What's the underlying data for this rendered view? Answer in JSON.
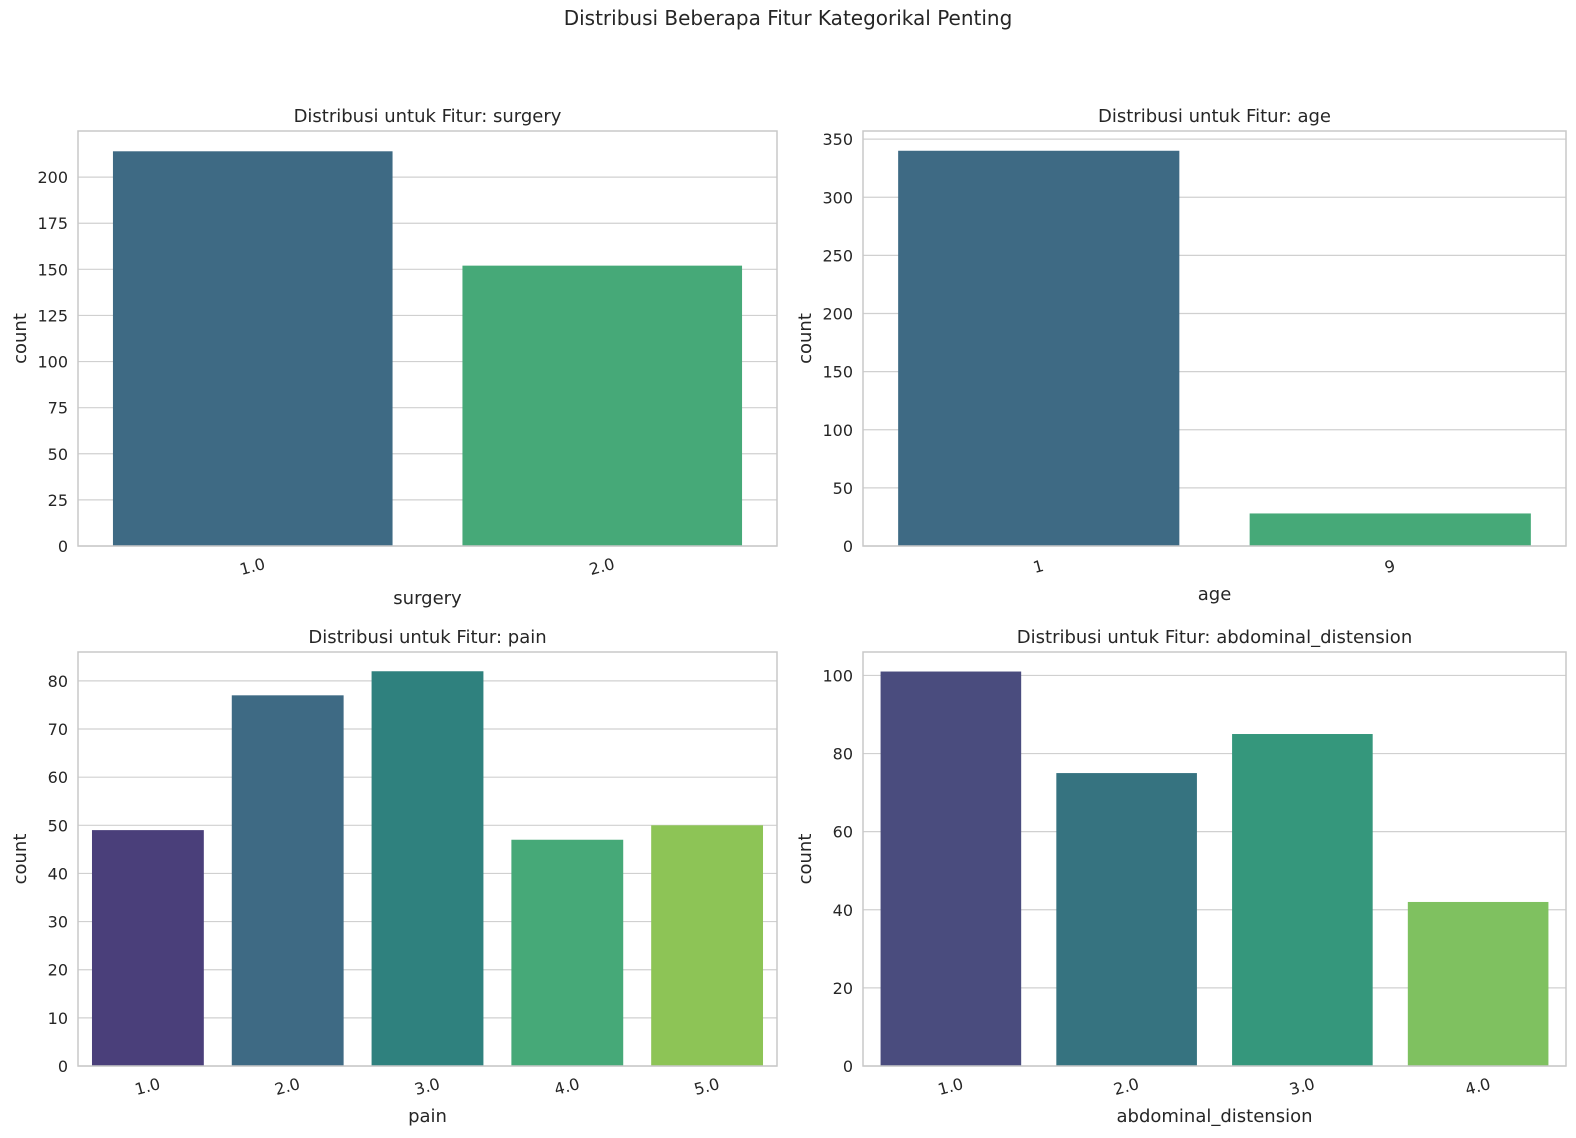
{
  "suptitle": "Distribusi Beberapa Fitur Kategorikal Penting",
  "chart_data": [
    {
      "type": "bar",
      "title": "Distribusi untuk Fitur: surgery",
      "xlabel": "surgery",
      "ylabel": "count",
      "categories": [
        "1.0",
        "2.0"
      ],
      "values": [
        214,
        152
      ],
      "ylim": [
        0,
        225
      ],
      "yticks": [
        0,
        25,
        50,
        75,
        100,
        125,
        150,
        175,
        200
      ],
      "colors": [
        "#3e6a84",
        "#46a978"
      ],
      "grid": true
    },
    {
      "type": "bar",
      "title": "Distribusi untuk Fitur: age",
      "xlabel": "age",
      "ylabel": "count",
      "categories": [
        "1",
        "9"
      ],
      "values": [
        340,
        28
      ],
      "ylim": [
        0,
        357
      ],
      "yticks": [
        0,
        50,
        100,
        150,
        200,
        250,
        300,
        350
      ],
      "colors": [
        "#3e6a84",
        "#46a978"
      ],
      "grid": true
    },
    {
      "type": "bar",
      "title": "Distribusi untuk Fitur: pain",
      "xlabel": "pain",
      "ylabel": "count",
      "categories": [
        "1.0",
        "2.0",
        "3.0",
        "4.0",
        "5.0"
      ],
      "values": [
        49,
        77,
        82,
        47,
        50
      ],
      "ylim": [
        0,
        86
      ],
      "yticks": [
        0,
        10,
        20,
        30,
        40,
        50,
        60,
        70,
        80
      ],
      "colors": [
        "#4a3f7a",
        "#3e6a84",
        "#2f817e",
        "#46a978",
        "#8dc456"
      ],
      "grid": true
    },
    {
      "type": "bar",
      "title": "Distribusi untuk Fitur: abdominal_distension",
      "xlabel": "abdominal_distension",
      "ylabel": "count",
      "categories": [
        "1.0",
        "2.0",
        "3.0",
        "4.0"
      ],
      "values": [
        101,
        75,
        85,
        42
      ],
      "ylim": [
        0,
        106
      ],
      "yticks": [
        0,
        20,
        40,
        60,
        80,
        100
      ],
      "colors": [
        "#4a4c7e",
        "#367380",
        "#35977c",
        "#7fc160"
      ],
      "grid": true
    }
  ]
}
